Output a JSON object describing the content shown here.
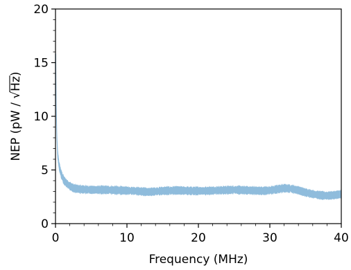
{
  "chart_data": {
    "type": "line",
    "xlabel": "Frequency (MHz)",
    "ylabel_prefix": "NEP (pW / ",
    "ylabel_sqrt": "√",
    "ylabel_radicand": "Hz",
    "ylabel_suffix": ")",
    "xlim": [
      0,
      40
    ],
    "ylim": [
      0,
      20
    ],
    "xticks": [
      0,
      10,
      20,
      30,
      40
    ],
    "yticks": [
      0,
      5,
      10,
      15,
      20
    ],
    "xtick_labels": [
      "0",
      "10",
      "20",
      "30",
      "40"
    ],
    "ytick_labels": [
      "0",
      "5",
      "10",
      "15",
      "20"
    ],
    "grid": false,
    "series": [
      {
        "color": "#8fbcdc",
        "x": [
          0.05,
          0.1,
          0.2,
          0.3,
          0.5,
          0.8,
          1.2,
          1.8,
          2.5,
          3.5,
          5,
          7,
          9,
          11,
          12,
          13,
          15,
          17,
          19,
          21,
          23,
          25,
          27,
          29,
          30,
          31,
          32,
          33,
          34,
          35,
          36,
          37,
          38,
          39,
          40
        ],
        "y": [
          15.5,
          11.0,
          8.0,
          6.5,
          5.4,
          4.6,
          4.0,
          3.6,
          3.3,
          3.2,
          3.15,
          3.15,
          3.1,
          3.05,
          3.0,
          2.95,
          3.05,
          3.1,
          3.05,
          3.05,
          3.1,
          3.15,
          3.1,
          3.05,
          3.1,
          3.2,
          3.3,
          3.25,
          3.1,
          2.9,
          2.75,
          2.65,
          2.6,
          2.65,
          2.75
        ],
        "band": 0.3
      }
    ]
  }
}
